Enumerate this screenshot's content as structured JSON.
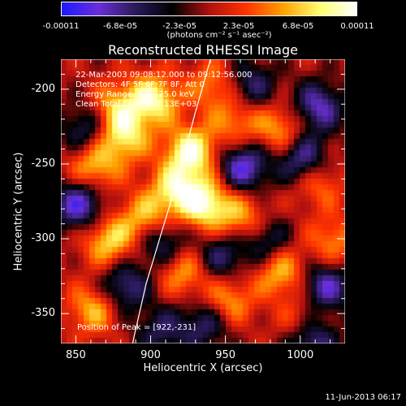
{
  "title": "Reconstructed RHESSI Image",
  "colorbar": {
    "ticks": [
      "-0.00011",
      "-6.8e-05",
      "-2.3e-05",
      "2.3e-05",
      "6.8e-05",
      "0.00011"
    ],
    "units": "(photons cm⁻² s⁻¹ asec⁻²)"
  },
  "info": {
    "line1": "22-Mar-2003 09:08:12.000 to 09:12:56.000",
    "line2": "Detectors: 4F 5F 6F 7F 8F, Att 0",
    "line3": "Energy Range: 6.0 - 25.0 keV",
    "line4": "Clean     Total Counts: 2.13E+03"
  },
  "peak": "Position of Peak = [922,-231]",
  "date_stamp": "11-Jun-2013 06:17",
  "chart_data": {
    "type": "heatmap",
    "title": "Reconstructed RHESSI Image",
    "xlabel": "Heliocentric X (arcsec)",
    "ylabel": "Heliocentric Y (arcsec)",
    "xlim": [
      840,
      1030
    ],
    "ylim": [
      -370,
      -180
    ],
    "x_ticks": [
      "850",
      "900",
      "950",
      "1000"
    ],
    "y_ticks": [
      "-200",
      "-250",
      "-300",
      "-350"
    ],
    "colormap": [
      "#1a1aff",
      "#6a2fd6",
      "#2a1a5a",
      "#000000",
      "#b01010",
      "#ff3300",
      "#ffa000",
      "#ffff70",
      "#ffffff"
    ],
    "blobs": [
      {
        "x": 900,
        "y": -205,
        "v": 0.9
      },
      {
        "x": 880,
        "y": -230,
        "v": 0.8
      },
      {
        "x": 925,
        "y": -240,
        "v": 1.0
      },
      {
        "x": 860,
        "y": -250,
        "v": 0.7
      },
      {
        "x": 935,
        "y": -275,
        "v": 0.95
      },
      {
        "x": 915,
        "y": -265,
        "v": 0.8
      },
      {
        "x": 960,
        "y": -285,
        "v": 0.6
      },
      {
        "x": 870,
        "y": -300,
        "v": 0.75
      },
      {
        "x": 895,
        "y": -285,
        "v": 0.7
      },
      {
        "x": 985,
        "y": -225,
        "v": 0.6
      },
      {
        "x": 985,
        "y": -320,
        "v": 0.7
      },
      {
        "x": 1010,
        "y": -260,
        "v": 0.5
      },
      {
        "x": 920,
        "y": -320,
        "v": 0.6
      },
      {
        "x": 860,
        "y": -345,
        "v": 0.65
      },
      {
        "x": 1000,
        "y": -355,
        "v": 0.55
      },
      {
        "x": 950,
        "y": -340,
        "v": 0.6
      },
      {
        "x": 875,
        "y": -210,
        "v": 0.6
      },
      {
        "x": 955,
        "y": -220,
        "v": 0.5
      },
      {
        "x": 1020,
        "y": -300,
        "v": 0.5
      },
      {
        "x": 940,
        "y": -195,
        "v": 0.5
      },
      {
        "x": 850,
        "y": -275,
        "v": -0.9
      },
      {
        "x": 960,
        "y": -250,
        "v": -0.9
      },
      {
        "x": 1000,
        "y": -245,
        "v": -0.8
      },
      {
        "x": 905,
        "y": -300,
        "v": -0.7
      },
      {
        "x": 1010,
        "y": -210,
        "v": -0.8
      },
      {
        "x": 1015,
        "y": -330,
        "v": -0.8
      },
      {
        "x": 880,
        "y": -330,
        "v": -0.7
      },
      {
        "x": 975,
        "y": -300,
        "v": -0.6
      },
      {
        "x": 1005,
        "y": -365,
        "v": -0.9
      },
      {
        "x": 935,
        "y": -355,
        "v": -0.6
      },
      {
        "x": 855,
        "y": -225,
        "v": -0.6
      },
      {
        "x": 965,
        "y": -195,
        "v": -0.6
      },
      {
        "x": 905,
        "y": -360,
        "v": -0.5
      },
      {
        "x": 945,
        "y": -310,
        "v": -0.6
      }
    ],
    "limb_curve": [
      [
        940,
        -180
      ],
      [
        930,
        -215
      ],
      [
        918,
        -260
      ],
      [
        906,
        -300
      ],
      [
        897,
        -330
      ],
      [
        889,
        -365
      ],
      [
        888,
        -370
      ]
    ],
    "peak_position": [
      922,
      -231
    ]
  }
}
